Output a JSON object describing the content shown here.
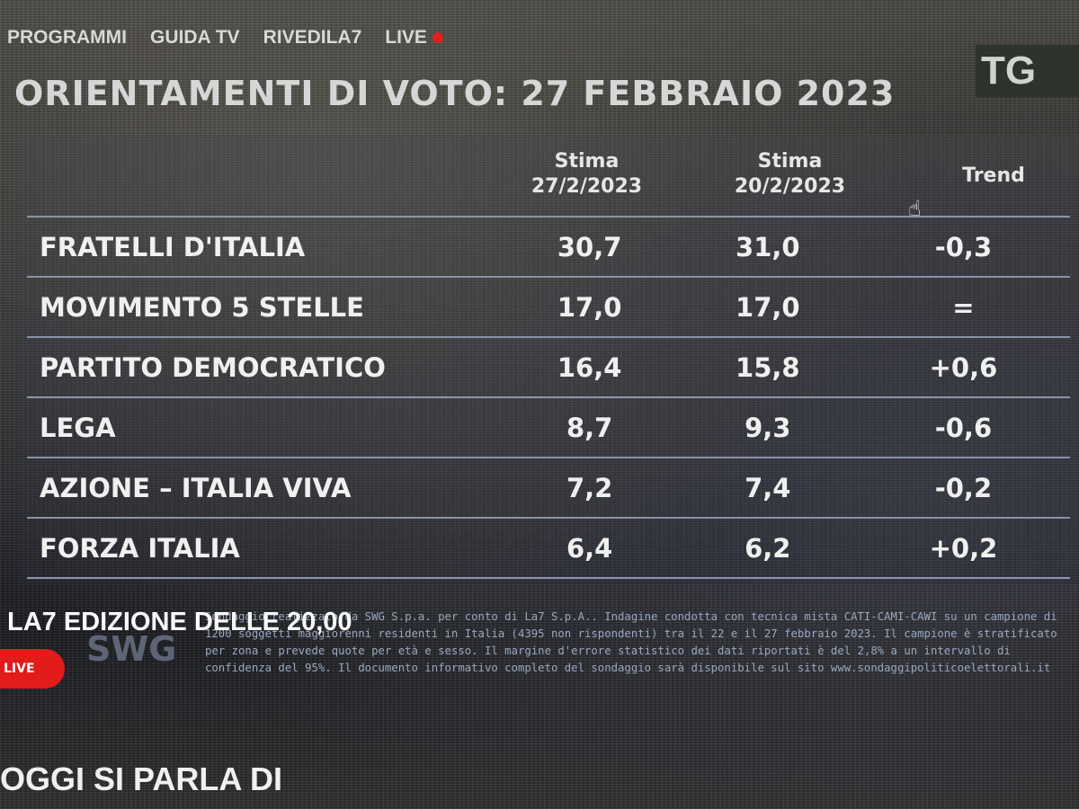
{
  "nav": {
    "items": [
      "PROGRAMMI",
      "GUIDA TV",
      "RIVEDILA7",
      "LIVE"
    ],
    "live_dot_color": "#e02020"
  },
  "logo": "TG",
  "title": "ORIENTAMENTI DI VOTO: 27 FEBBRAIO 2023",
  "table": {
    "headers": [
      {
        "l1": "Stima",
        "l2": "27/2/2023"
      },
      {
        "l1": "Stima",
        "l2": "20/2/2023"
      },
      {
        "l1": "Trend",
        "l2": ""
      }
    ],
    "rows": [
      {
        "party": "FRATELLI D'ITALIA",
        "a": "30,7",
        "b": "31,0",
        "trend": "-0,3"
      },
      {
        "party": "MOVIMENTO 5 STELLE",
        "a": "17,0",
        "b": "17,0",
        "trend": "="
      },
      {
        "party": "PARTITO DEMOCRATICO",
        "a": "16,4",
        "b": "15,8",
        "trend": "+0,6"
      },
      {
        "party": "LEGA",
        "a": "8,7",
        "b": "9,3",
        "trend": "-0,6"
      },
      {
        "party": "AZIONE – ITALIA VIVA",
        "a": "7,2",
        "b": "7,4",
        "trend": "-0,2"
      },
      {
        "party": "FORZA ITALIA",
        "a": "6,4",
        "b": "6,2",
        "trend": "+0,2"
      }
    ]
  },
  "edition": "LA7 EDIZIONE DELLE 20,00",
  "swg": "SWG",
  "live_button": "LIVE",
  "note": "Sondaggio realizzato da SWG S.p.a. per conto di La7 S.p.A.. Indagine condotta con tecnica mista CATI-CAMI-CAWI su un campione di 1200 soggetti maggiorenni residenti in Italia (4395 non rispondenti) tra il 22 e il 27 febbraio 2023. Il campione è stratificato per zona e prevede quote per età e sesso. Il margine d'errore statistico dei dati riportati è del 2,8% a un intervallo di confidenza del 95%. Il documento informativo completo del sondaggio sarà disponibile sul sito www.sondaggipoliticoelettorali.it",
  "bottom_heading": "OGGI SI PARLA DI"
}
